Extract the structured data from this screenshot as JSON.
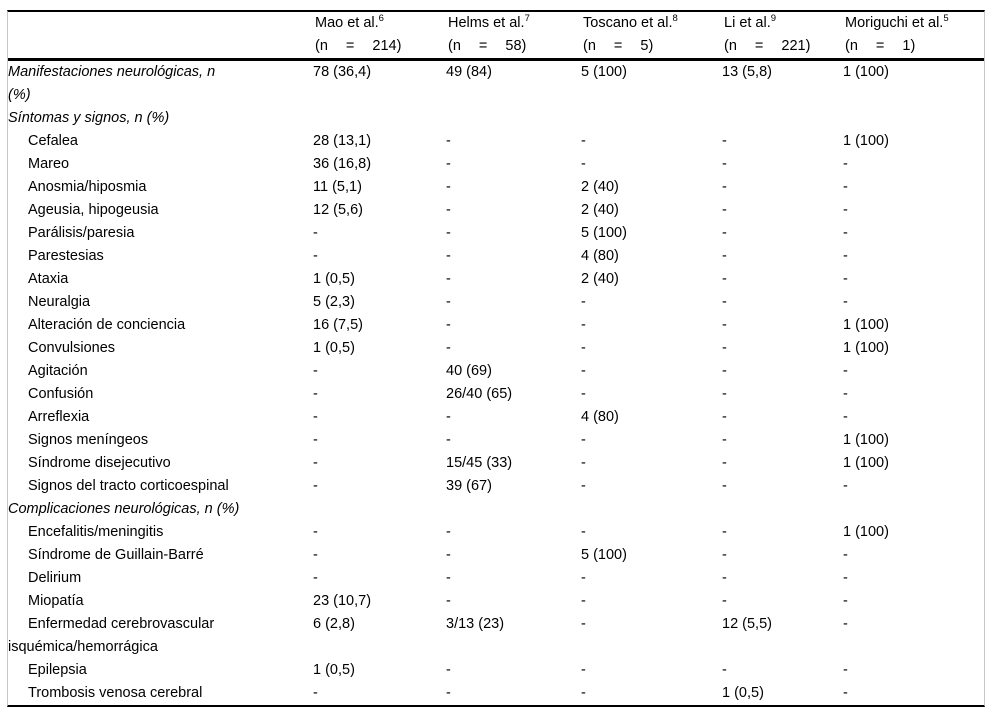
{
  "colors": {
    "background": "#ffffff",
    "text": "#000000",
    "rule": "#000000",
    "frame_border": "#c6c6c6"
  },
  "table": {
    "header": {
      "row_label_col": "",
      "columns": [
        {
          "study": "Mao et al.",
          "ref": "6",
          "n_label": "(n = 214)"
        },
        {
          "study": "Helms et al.",
          "ref": "7",
          "n_label": "(n = 58)"
        },
        {
          "study": "Toscano et al.",
          "ref": "8",
          "n_label": "(n = 5)"
        },
        {
          "study": "Li et al.",
          "ref": "9",
          "n_label": "(n = 221)"
        },
        {
          "study": "Moriguchi et al.",
          "ref": "5",
          "n_label": "(n = 1)"
        }
      ]
    },
    "rows": [
      {
        "type": "section",
        "label": "Manifestaciones neurológicas, n\n(%)",
        "values": [
          "78 (36,4)",
          "49 (84)",
          "5 (100)",
          "13 (5,8)",
          "1 (100)"
        ]
      },
      {
        "type": "section",
        "label": "Síntomas y signos, n (%)",
        "values": [
          "",
          "",
          "",
          "",
          ""
        ]
      },
      {
        "type": "item",
        "label": "Cefalea",
        "values": [
          "28 (13,1)",
          "-",
          "-",
          "-",
          "1 (100)"
        ]
      },
      {
        "type": "item",
        "label": "Mareo",
        "values": [
          "36 (16,8)",
          "-",
          "-",
          "-",
          "-"
        ]
      },
      {
        "type": "item",
        "label": "Anosmia/hiposmia",
        "values": [
          "11 (5,1)",
          "-",
          "2 (40)",
          "-",
          "-"
        ]
      },
      {
        "type": "item",
        "label": "Ageusia, hipogeusia",
        "values": [
          "12 (5,6)",
          "-",
          "2 (40)",
          "-",
          "-"
        ]
      },
      {
        "type": "item",
        "label": "Parálisis/paresia",
        "values": [
          "-",
          "-",
          "5 (100)",
          "-",
          "-"
        ]
      },
      {
        "type": "item",
        "label": "Parestesias",
        "values": [
          "-",
          "-",
          "4 (80)",
          "-",
          "-"
        ]
      },
      {
        "type": "item",
        "label": "Ataxia",
        "values": [
          "1 (0,5)",
          "-",
          "2 (40)",
          "-",
          "-"
        ]
      },
      {
        "type": "item",
        "label": "Neuralgia",
        "values": [
          "5 (2,3)",
          "-",
          "-",
          "-",
          "-"
        ]
      },
      {
        "type": "item",
        "label": "Alteración de conciencia",
        "values": [
          "16 (7,5)",
          "-",
          "-",
          "-",
          "1 (100)"
        ]
      },
      {
        "type": "item",
        "label": "Convulsiones",
        "values": [
          "1 (0,5)",
          "-",
          "-",
          "-",
          "1 (100)"
        ]
      },
      {
        "type": "item",
        "label": "Agitación",
        "values": [
          "-",
          "40 (69)",
          "-",
          "-",
          "-"
        ]
      },
      {
        "type": "item",
        "label": "Confusión",
        "values": [
          "-",
          "26/40 (65)",
          "-",
          "-",
          "-"
        ]
      },
      {
        "type": "item",
        "label": "Arreflexia",
        "values": [
          "-",
          "-",
          "4 (80)",
          "-",
          "-"
        ]
      },
      {
        "type": "item",
        "label": "Signos meníngeos",
        "values": [
          "-",
          "-",
          "-",
          "-",
          "1 (100)"
        ]
      },
      {
        "type": "item",
        "label": "Síndrome disejecutivo",
        "values": [
          "-",
          "15/45 (33)",
          "-",
          "-",
          "1 (100)"
        ]
      },
      {
        "type": "item",
        "label": "Signos del tracto corticoespinal",
        "values": [
          "-",
          "39 (67)",
          "-",
          "-",
          "-"
        ]
      },
      {
        "type": "section",
        "label": "Complicaciones neurológicas, n (%)",
        "values": [
          "",
          "",
          "",
          "",
          ""
        ]
      },
      {
        "type": "item",
        "label": "Encefalitis/meningitis",
        "values": [
          "-",
          "-",
          "-",
          "-",
          "1 (100)"
        ]
      },
      {
        "type": "item",
        "label": "Síndrome de Guillain-Barré",
        "values": [
          "-",
          "-",
          "5 (100)",
          "-",
          "-"
        ]
      },
      {
        "type": "item",
        "label": "Delirium",
        "values": [
          "-",
          "-",
          "-",
          "-",
          "-"
        ]
      },
      {
        "type": "item",
        "label": "Miopatía",
        "values": [
          "23 (10,7)",
          "-",
          "-",
          "-",
          "-"
        ]
      },
      {
        "type": "item",
        "label": "Enfermedad cerebrovascular\nisquémica/hemorrágica",
        "values": [
          "6 (2,8)",
          "3/13 (23)",
          "-",
          "12 (5,5)",
          "-"
        ]
      },
      {
        "type": "item",
        "label": "Epilepsia",
        "values": [
          "1 (0,5)",
          "-",
          "-",
          "-",
          "-"
        ]
      },
      {
        "type": "item",
        "label": "Trombosis venosa cerebral",
        "values": [
          "-",
          "-",
          "-",
          "1 (0,5)",
          "-"
        ]
      }
    ]
  }
}
